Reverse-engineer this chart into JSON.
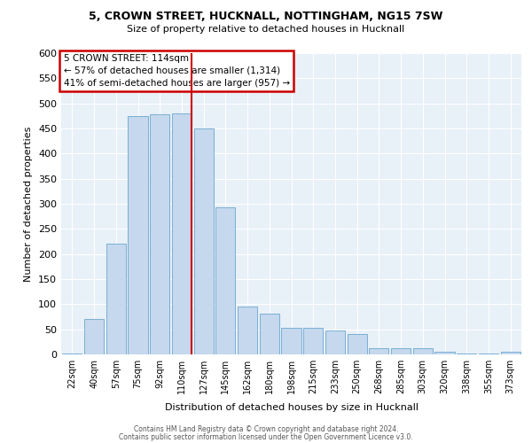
{
  "title_line1": "5, CROWN STREET, HUCKNALL, NOTTINGHAM, NG15 7SW",
  "title_line2": "Size of property relative to detached houses in Hucknall",
  "xlabel": "Distribution of detached houses by size in Hucknall",
  "ylabel": "Number of detached properties",
  "footer_line1": "Contains HM Land Registry data © Crown copyright and database right 2024.",
  "footer_line2": "Contains public sector information licensed under the Open Government Licence v3.0.",
  "annotation_line1": "5 CROWN STREET: 114sqm",
  "annotation_line2": "← 57% of detached houses are smaller (1,314)",
  "annotation_line3": "41% of semi-detached houses are larger (957) →",
  "bar_labels": [
    "22sqm",
    "40sqm",
    "57sqm",
    "75sqm",
    "92sqm",
    "110sqm",
    "127sqm",
    "145sqm",
    "162sqm",
    "180sqm",
    "198sqm",
    "215sqm",
    "233sqm",
    "250sqm",
    "268sqm",
    "285sqm",
    "303sqm",
    "320sqm",
    "338sqm",
    "355sqm",
    "373sqm"
  ],
  "bar_values": [
    2,
    70,
    220,
    475,
    478,
    480,
    450,
    293,
    95,
    82,
    53,
    53,
    47,
    40,
    12,
    12,
    12,
    5,
    2,
    2,
    5
  ],
  "bar_color": "#c5d8ed",
  "bar_edge_color": "#7aafd4",
  "vline_index": 5,
  "vline_color": "#cc0000",
  "background_color": "#e8f0f8",
  "ylim_max": 600,
  "ytick_step": 50
}
